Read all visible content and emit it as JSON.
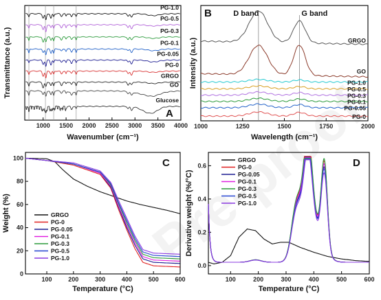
{
  "figure": {
    "panels": [
      "A",
      "B",
      "C",
      "D"
    ],
    "watermark": "Pre-proof"
  },
  "chart_data": [
    {
      "panel": "A",
      "type": "line",
      "xlabel": "Wavenumber (cm⁻¹)",
      "ylabel": "Transmittance (a.u.)",
      "xlim": [
        600,
        4000
      ],
      "xticks": [
        "1000",
        "1500",
        "2000",
        "2500",
        "3000",
        "3500",
        "4000"
      ],
      "series": [
        {
          "name": "PG-1.0",
          "color": "#111111",
          "offset": 9.3
        },
        {
          "name": "PG-0.5",
          "color": "#b060d8",
          "offset": 8.3
        },
        {
          "name": "PG-0.3",
          "color": "#2a9a3a",
          "offset": 7.2
        },
        {
          "name": "PG-0.1",
          "color": "#2060c8",
          "offset": 6.1
        },
        {
          "name": "PG-0.05",
          "color": "#1a1a90",
          "offset": 5.1
        },
        {
          "name": "PG-0",
          "color": "#d83030",
          "offset": 4.1
        },
        {
          "name": "GRGO",
          "color": "#222222",
          "offset": 3.1
        },
        {
          "name": "GO",
          "color": "#444444",
          "offset": 2.3
        },
        {
          "name": "Glucose",
          "color": "#333333",
          "offset": 0.9
        }
      ],
      "vlines": [
        690,
        1050,
        1230,
        1720
      ]
    },
    {
      "panel": "B",
      "type": "line",
      "xlabel": "Wavelength (cm⁻¹)",
      "ylabel": "Intensity (a.u.)",
      "xlim": [
        1000,
        2000
      ],
      "xticks": [
        "1000",
        "1250",
        "1500",
        "1750",
        "2000"
      ],
      "annotations": [
        "D band",
        "G band"
      ],
      "band_positions": [
        1345,
        1590
      ],
      "series": [
        {
          "name": "GRGO",
          "color": "#555555",
          "offset": 7.6,
          "d": 3.0,
          "g": 2.1
        },
        {
          "name": "GO",
          "color": "#8b3a2a",
          "offset": 4.5,
          "d": 2.8,
          "g": 2.9
        },
        {
          "name": "PG-1.0",
          "color": "#20c8d0",
          "offset": 3.7,
          "d": 0.25,
          "g": 0.2
        },
        {
          "name": "PG-0.5",
          "color": "#d8a020",
          "offset": 3.05,
          "d": 0.28,
          "g": 0.22
        },
        {
          "name": "PG-0.3",
          "color": "#b070e0",
          "offset": 2.45,
          "d": 0.3,
          "g": 0.24
        },
        {
          "name": "PG-0.1",
          "color": "#2a9a3a",
          "offset": 1.85,
          "d": 0.3,
          "g": 0.24
        },
        {
          "name": "PG-0.05",
          "color": "#2060c8",
          "offset": 1.25,
          "d": 0.35,
          "g": 0.3
        },
        {
          "name": "PG-0",
          "color": "#e05050",
          "offset": 0.45,
          "d": 0.4,
          "g": 0.35
        }
      ]
    },
    {
      "panel": "C",
      "type": "line",
      "xlabel": "Temperature (°C)",
      "ylabel": "Weight (%)",
      "xlim": [
        20,
        600
      ],
      "ylim": [
        0,
        105
      ],
      "xticks": [
        100,
        200,
        300,
        400,
        500,
        600
      ],
      "yticks": [
        0,
        20,
        40,
        60,
        80,
        100
      ],
      "series": [
        {
          "name": "GRGO",
          "color": "#111111",
          "x": [
            20,
            100,
            130,
            160,
            200,
            250,
            300,
            350,
            400,
            450,
            500,
            550,
            600
          ],
          "y": [
            100,
            99.5,
            97,
            90,
            82,
            76,
            71,
            67,
            63,
            60,
            57.5,
            55,
            52
          ]
        },
        {
          "name": "PG-0",
          "color": "#e02020",
          "x": [
            20,
            100,
            200,
            300,
            340,
            370,
            400,
            430,
            460,
            500,
            600
          ],
          "y": [
            100,
            98,
            94,
            86,
            74,
            55,
            38,
            22,
            10,
            7,
            6
          ]
        },
        {
          "name": "PG-0.05",
          "color": "#1a1a90",
          "x": [
            20,
            100,
            200,
            300,
            340,
            370,
            400,
            430,
            460,
            500,
            600
          ],
          "y": [
            100,
            98,
            95,
            87,
            75,
            57,
            40,
            25,
            13,
            10,
            9
          ]
        },
        {
          "name": "PG-0.1",
          "color": "#e020e0",
          "x": [
            20,
            100,
            200,
            300,
            340,
            370,
            400,
            430,
            460,
            500,
            600
          ],
          "y": [
            100,
            98,
            95,
            87,
            76,
            58,
            42,
            27,
            15,
            12,
            11
          ]
        },
        {
          "name": "PG-0.3",
          "color": "#2a9a3a",
          "x": [
            20,
            100,
            200,
            300,
            340,
            370,
            400,
            430,
            460,
            500,
            600
          ],
          "y": [
            100,
            98,
            95,
            88,
            77,
            60,
            44,
            29,
            17,
            14,
            13
          ]
        },
        {
          "name": "PG-0.5",
          "color": "#2040d0",
          "x": [
            20,
            100,
            200,
            300,
            340,
            370,
            400,
            430,
            460,
            500,
            600
          ],
          "y": [
            100,
            98,
            95,
            88,
            78,
            61,
            46,
            31,
            19,
            16,
            15
          ]
        },
        {
          "name": "PG-1.0",
          "color": "#8a3ae0",
          "x": [
            20,
            100,
            200,
            300,
            340,
            370,
            400,
            430,
            460,
            500,
            600
          ],
          "y": [
            100,
            98,
            96,
            89,
            79,
            63,
            48,
            33,
            21,
            18,
            17
          ]
        }
      ]
    },
    {
      "panel": "D",
      "type": "line",
      "xlabel": "Temperature (°C)",
      "ylabel": "Derivative weight (%/°C)",
      "xlim": [
        20,
        600
      ],
      "ylim": [
        -0.05,
        0.68
      ],
      "xticks": [
        100,
        200,
        300,
        400,
        500,
        600
      ],
      "yticks": [
        "0.0",
        "0.2",
        "0.4",
        "0.6"
      ],
      "series": [
        {
          "name": "GRGO",
          "color": "#111111",
          "x": [
            20,
            40,
            70,
            100,
            130,
            160,
            190,
            220,
            250,
            280,
            310,
            350,
            400,
            450,
            500,
            550,
            600
          ],
          "y": [
            0.02,
            0.01,
            0.02,
            0.06,
            0.17,
            0.22,
            0.21,
            0.16,
            0.13,
            0.14,
            0.14,
            0.11,
            0.08,
            0.055,
            0.04,
            0.03,
            0.025
          ]
        },
        {
          "name": "PG-0",
          "color": "#e02020",
          "scale": 1.0
        },
        {
          "name": "PG-0.05",
          "color": "#1a1a90",
          "scale": 0.94
        },
        {
          "name": "PG-0.1",
          "color": "#e020e0",
          "scale": 0.97
        },
        {
          "name": "PG-0.3",
          "color": "#2a9a3a",
          "scale": 1.02
        },
        {
          "name": "PG-0.5",
          "color": "#2040d0",
          "scale": 0.92
        },
        {
          "name": "PG-1.0",
          "color": "#8a3ae0",
          "scale": 0.88
        }
      ]
    }
  ]
}
